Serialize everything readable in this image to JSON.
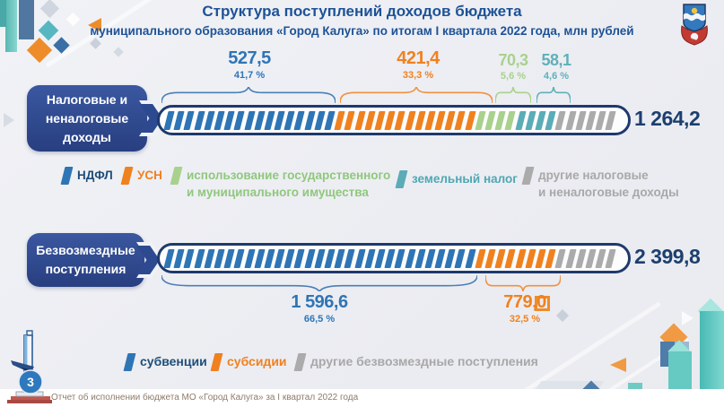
{
  "header": {
    "title": "Структура поступлений доходов бюджета",
    "subtitle": "муниципального образования «Город Калуга» по итогам I квартала 2022 года, млн рублей",
    "emblem": "kaluga-coat-of-arms"
  },
  "colors": {
    "title_blue": "#1d5296",
    "badge_blue": "#2d4a90",
    "bar_border_navy": "#1e3a6d",
    "segment_blue": "#2e75b6",
    "segment_orange": "#f0811f",
    "segment_green": "#a9d18e",
    "segment_teal": "#5aacb6",
    "segment_gray": "#ababab",
    "total_navy": "#1c3f6e",
    "footer_text": "#8d7b6b"
  },
  "section1": {
    "badge_lines": [
      "Налоговые и",
      "неналоговые",
      "доходы"
    ],
    "callouts": [
      {
        "value": "527,5",
        "pct": "41,7 %"
      },
      {
        "value": "421,4",
        "pct": "33,3 %"
      },
      {
        "value": "70,3",
        "pct": "5,6 %"
      },
      {
        "value": "58,1",
        "pct": "4,6 %"
      }
    ],
    "total": "1 264,2",
    "segments": [
      {
        "count": 17,
        "color": "#2e75b6"
      },
      {
        "count": 14,
        "color": "#f0811f"
      },
      {
        "count": 4,
        "color": "#a9d18e"
      },
      {
        "count": 4,
        "color": "#5aacb6"
      },
      {
        "count": 6,
        "color": "#ababab"
      }
    ],
    "legend": [
      {
        "label": "НДФЛ"
      },
      {
        "label": "УСН"
      },
      {
        "line1": "использование государственного",
        "line2": "и муниципального имущества"
      },
      {
        "label": "земельный налог"
      },
      {
        "line1": "другие налоговые",
        "line2": "и неналоговые доходы"
      }
    ]
  },
  "section2": {
    "badge_lines": [
      "Безвозмездные",
      "поступления"
    ],
    "total": "2 399,8",
    "segments": [
      {
        "count": 31,
        "color": "#2e75b6"
      },
      {
        "count": 8,
        "color": "#f0811f"
      },
      {
        "count": 6,
        "color": "#ababab"
      }
    ],
    "callouts": [
      {
        "value": "1 596,6",
        "pct": "66,5 %"
      },
      {
        "value": "779,0",
        "pct": "32,5 %"
      }
    ],
    "legend": [
      {
        "label": "субвенции"
      },
      {
        "label": "субсидии"
      },
      {
        "label": "другие безвозмездные поступления"
      }
    ]
  },
  "footer": {
    "page": "3",
    "text": "Отчет об исполнении бюджета МО «Город Калуга» за I квартал 2022 года"
  },
  "chart_data": [
    {
      "type": "bar",
      "title": "Налоговые и неналоговые доходы",
      "total": 1264.2,
      "unit": "млн рублей",
      "series": [
        {
          "name": "НДФЛ",
          "value": 527.5,
          "pct": 41.7
        },
        {
          "name": "УСН",
          "value": 421.4,
          "pct": 33.3
        },
        {
          "name": "использование государственного и муниципального имущества",
          "value": 70.3,
          "pct": 5.6
        },
        {
          "name": "земельный налог",
          "value": 58.1,
          "pct": 4.6
        },
        {
          "name": "другие налоговые и неналоговые доходы"
        }
      ]
    },
    {
      "type": "bar",
      "title": "Безвозмездные поступления",
      "total": 2399.8,
      "unit": "млн рублей",
      "series": [
        {
          "name": "субвенции",
          "value": 1596.6,
          "pct": 66.5
        },
        {
          "name": "субсидии",
          "value": 779.0,
          "pct": 32.5
        },
        {
          "name": "другие безвозмездные поступления"
        }
      ]
    }
  ]
}
